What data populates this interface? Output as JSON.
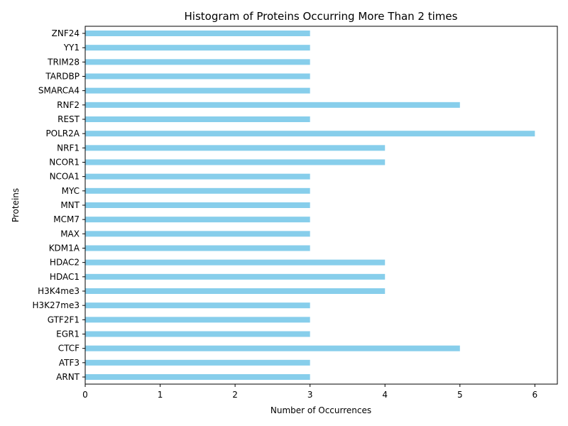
{
  "chart_data": {
    "type": "bar",
    "orientation": "horizontal",
    "title": "Histogram of Proteins Occurring More Than 2 times",
    "xlabel": "Number of Occurrences",
    "ylabel": "Proteins",
    "xlim": [
      0,
      6.3
    ],
    "xticks": [
      0,
      1,
      2,
      3,
      4,
      5,
      6
    ],
    "grid": false,
    "bar_color": "#87ceeb",
    "categories": [
      "ARNT",
      "ATF3",
      "CTCF",
      "EGR1",
      "GTF2F1",
      "H3K27me3",
      "H3K4me3",
      "HDAC1",
      "HDAC2",
      "KDM1A",
      "MAX",
      "MCM7",
      "MNT",
      "MYC",
      "NCOA1",
      "NCOR1",
      "NRF1",
      "POLR2A",
      "REST",
      "RNF2",
      "SMARCA4",
      "TARDBP",
      "TRIM28",
      "YY1",
      "ZNF24"
    ],
    "values": [
      3,
      3,
      5,
      3,
      3,
      3,
      4,
      4,
      4,
      3,
      3,
      3,
      3,
      3,
      3,
      4,
      4,
      6,
      3,
      5,
      3,
      3,
      3,
      3,
      3
    ]
  }
}
